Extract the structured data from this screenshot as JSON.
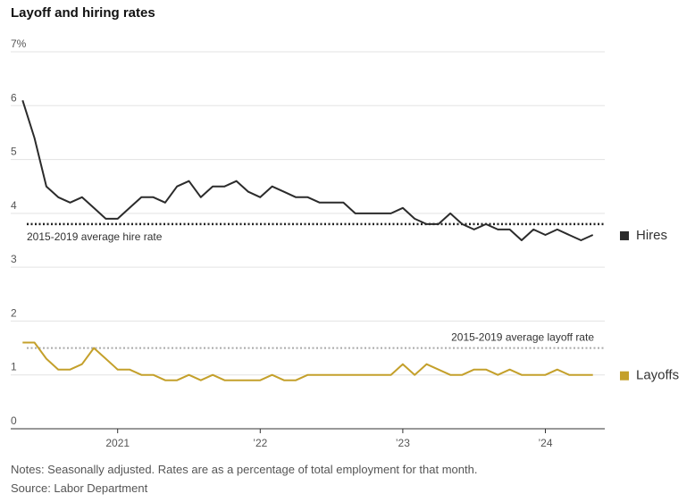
{
  "title": "Layoff and hiring rates",
  "notes": "Notes: Seasonally adjusted. Rates are as a percentage of total employment for that month.",
  "source": "Source: Labor Department",
  "chart_data": {
    "type": "line",
    "title": "Layoff and hiring rates",
    "xlabel": "",
    "ylabel": "",
    "ylim": [
      0,
      7
    ],
    "y_ticks": [
      0,
      1,
      2,
      3,
      4,
      5,
      6,
      7
    ],
    "y_tick_labels": [
      "0",
      "1",
      "2",
      "3",
      "4",
      "5",
      "6",
      "7%"
    ],
    "x_tick_labels": [
      {
        "label": "2021",
        "date": "2021-01"
      },
      {
        "label": "’22",
        "date": "2022-01"
      },
      {
        "label": "’23",
        "date": "2023-01"
      },
      {
        "label": "’24",
        "date": "2024-01"
      }
    ],
    "x_range": [
      "2020-04",
      "2024-06"
    ],
    "grid": true,
    "legend": "right",
    "x": [
      "2020-05",
      "2020-06",
      "2020-07",
      "2020-08",
      "2020-09",
      "2020-10",
      "2020-11",
      "2020-12",
      "2021-01",
      "2021-02",
      "2021-03",
      "2021-04",
      "2021-05",
      "2021-06",
      "2021-07",
      "2021-08",
      "2021-09",
      "2021-10",
      "2021-11",
      "2021-12",
      "2022-01",
      "2022-02",
      "2022-03",
      "2022-04",
      "2022-05",
      "2022-06",
      "2022-07",
      "2022-08",
      "2022-09",
      "2022-10",
      "2022-11",
      "2022-12",
      "2023-01",
      "2023-02",
      "2023-03",
      "2023-04",
      "2023-05",
      "2023-06",
      "2023-07",
      "2023-08",
      "2023-09",
      "2023-10",
      "2023-11",
      "2023-12",
      "2024-01",
      "2024-02",
      "2024-03",
      "2024-04",
      "2024-05"
    ],
    "series": [
      {
        "name": "Hires",
        "color": "#2b2b2b",
        "values": [
          6.1,
          5.4,
          4.5,
          4.3,
          4.2,
          4.3,
          4.1,
          3.9,
          3.9,
          4.1,
          4.3,
          4.3,
          4.2,
          4.5,
          4.6,
          4.3,
          4.5,
          4.5,
          4.6,
          4.4,
          4.3,
          4.5,
          4.4,
          4.3,
          4.3,
          4.2,
          4.2,
          4.2,
          4.0,
          4.0,
          4.0,
          4.0,
          4.1,
          3.9,
          3.8,
          3.8,
          4.0,
          3.8,
          3.7,
          3.8,
          3.7,
          3.7,
          3.5,
          3.7,
          3.6,
          3.7,
          3.6,
          3.5,
          3.6
        ]
      },
      {
        "name": "Layoffs",
        "color": "#c4a02b",
        "values": [
          1.6,
          1.6,
          1.3,
          1.1,
          1.1,
          1.2,
          1.5,
          1.3,
          1.1,
          1.1,
          1.0,
          1.0,
          0.9,
          0.9,
          1.0,
          0.9,
          1.0,
          0.9,
          0.9,
          0.9,
          0.9,
          1.0,
          0.9,
          0.9,
          1.0,
          1.0,
          1.0,
          1.0,
          1.0,
          1.0,
          1.0,
          1.0,
          1.2,
          1.0,
          1.2,
          1.1,
          1.0,
          1.0,
          1.1,
          1.1,
          1.0,
          1.1,
          1.0,
          1.0,
          1.0,
          1.1,
          1.0,
          1.0,
          1.0
        ]
      }
    ],
    "reference_lines": [
      {
        "label": "2015-2019 average hire rate",
        "value": 3.8,
        "color": "#222222"
      },
      {
        "label": "2015-2019 average layoff rate",
        "value": 1.5,
        "color": "#aaaaaa"
      }
    ]
  }
}
